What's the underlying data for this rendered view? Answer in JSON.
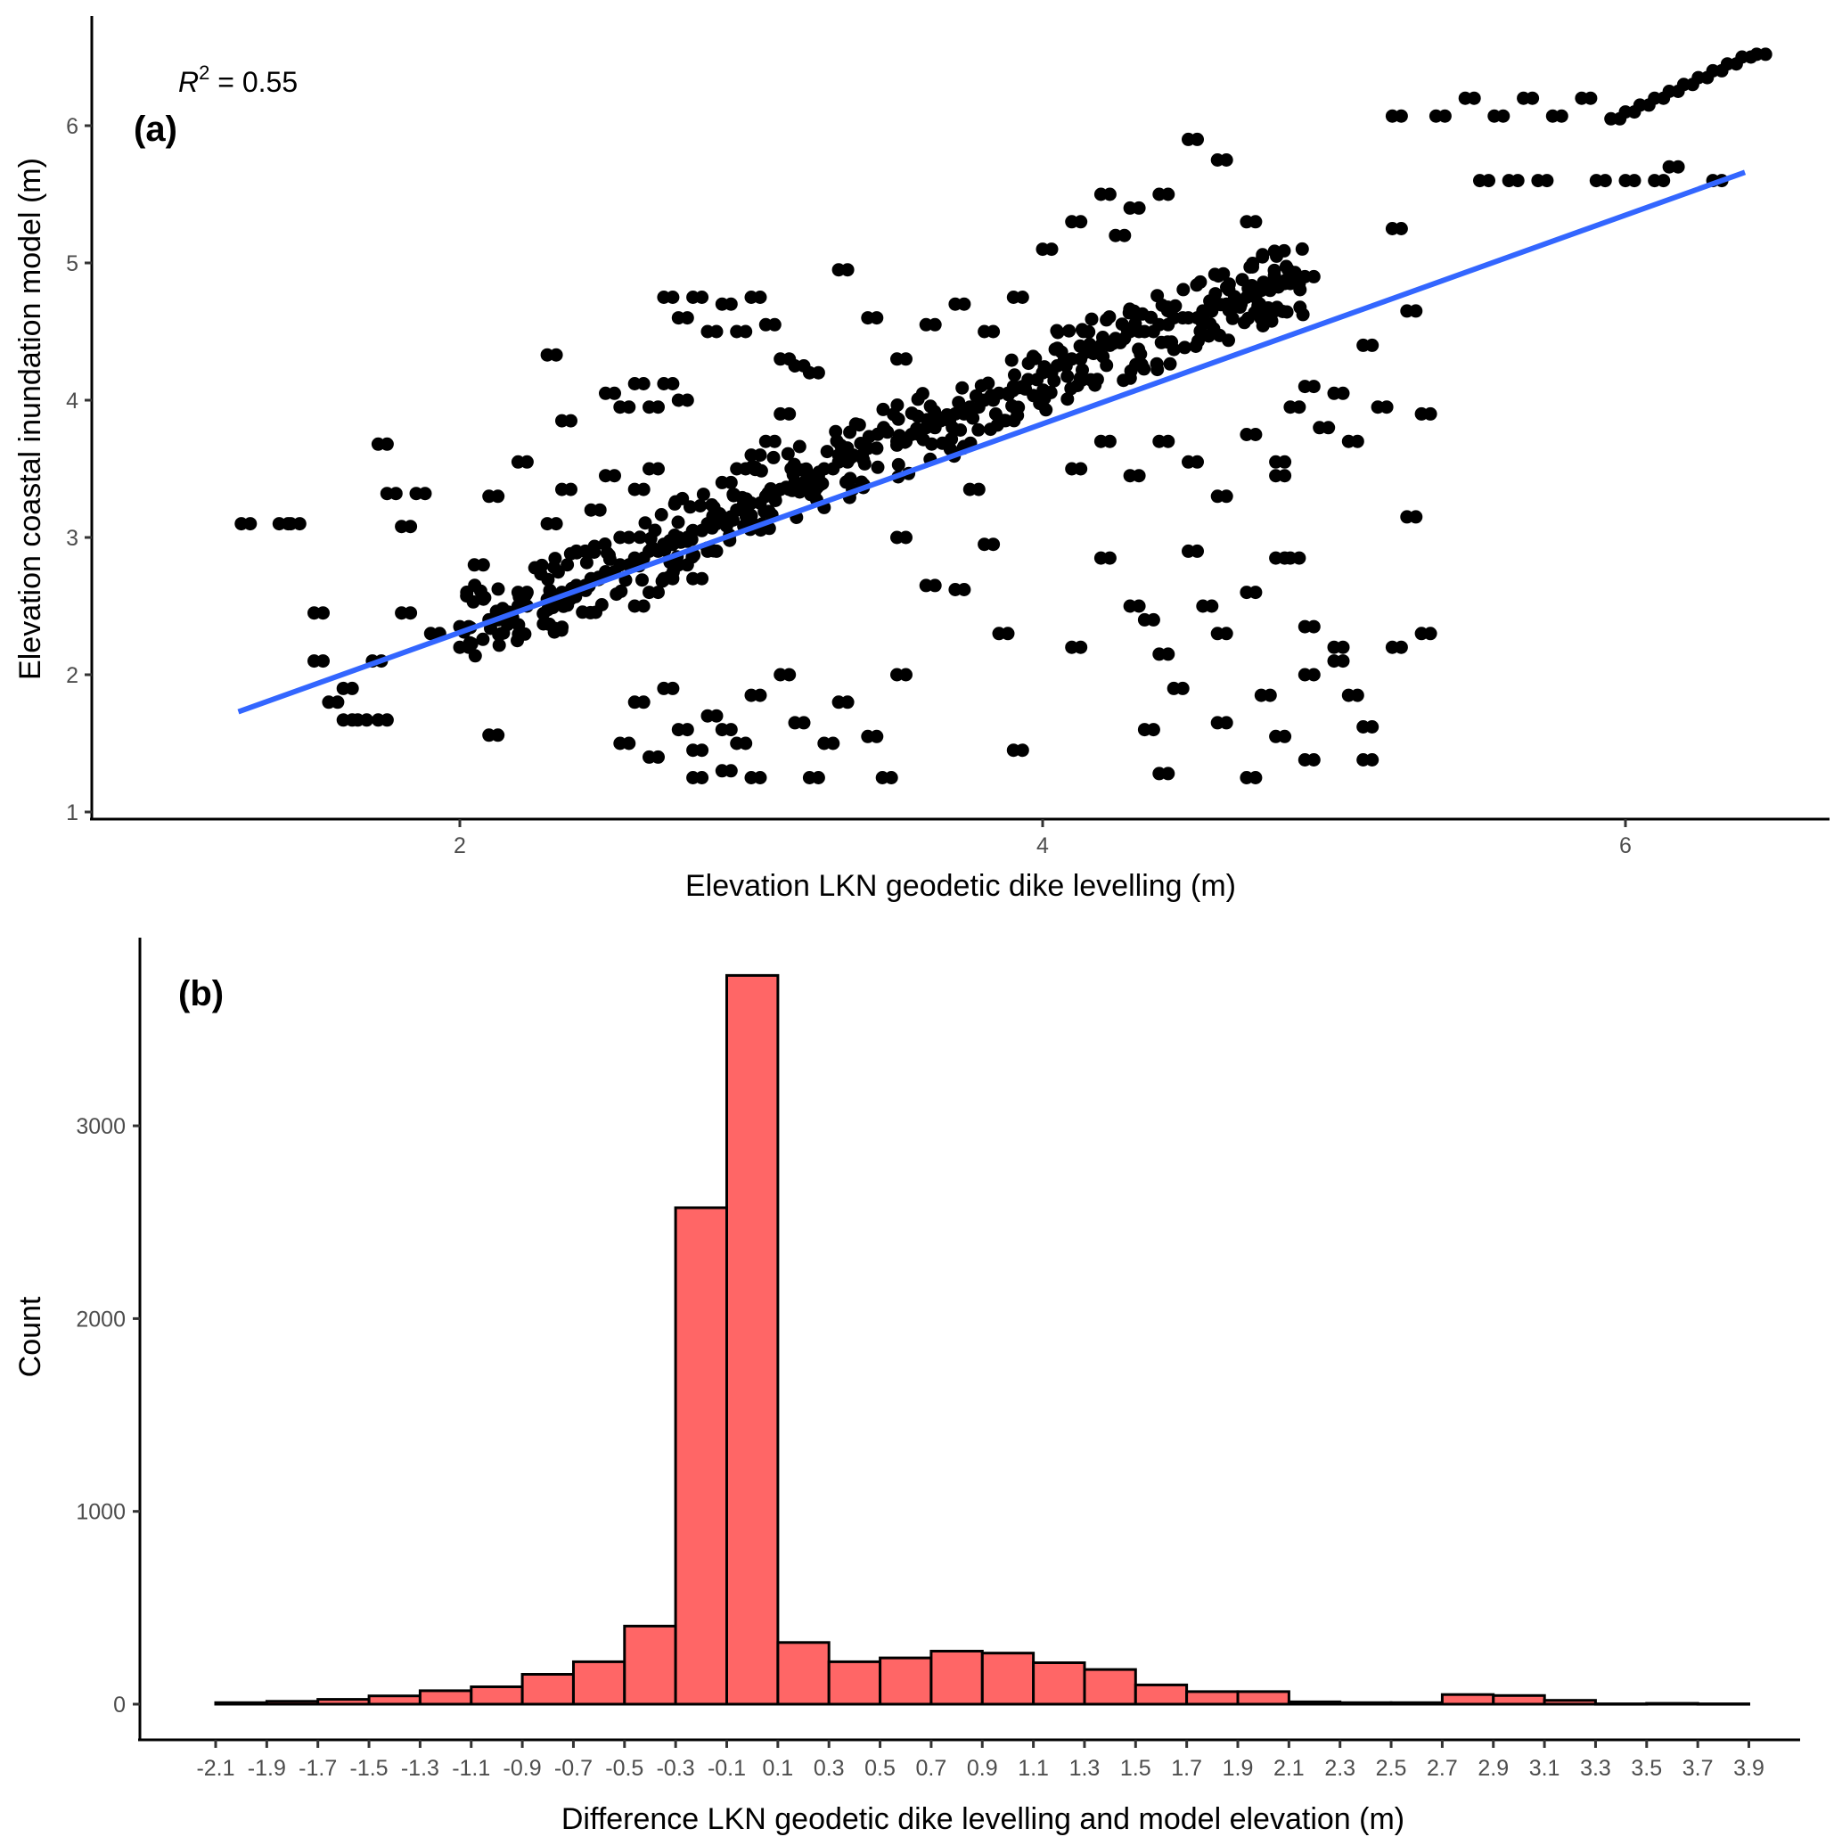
{
  "chart_data": [
    {
      "panel": "(a)",
      "type": "scatter",
      "xlabel": "Elevation LKN geodetic dike levelling (m)",
      "ylabel": "Elevation coastal inundation model (m)",
      "annotation": {
        "prefix": "R",
        "superscript": "2",
        "text": " = 0.55"
      },
      "xlim": [
        0.6,
        6.75
      ],
      "ylim": [
        1.0,
        6.7
      ],
      "x_ticks": [
        2,
        4,
        6
      ],
      "x_tick_labels": [
        "2",
        "4",
        "6"
      ],
      "y_ticks": [
        1,
        2,
        3,
        4,
        5,
        6
      ],
      "y_tick_labels": [
        "1",
        "2",
        "3",
        "4",
        "5",
        "6"
      ],
      "grid": false,
      "point_color": "#000000",
      "fit_line": {
        "color": "#3366FF",
        "x": [
          1.24,
          6.41
        ],
        "y": [
          1.73,
          5.66
        ]
      },
      "point_clusters": [
        {
          "x": [
            1.25,
            1.38,
            1.42
          ],
          "y": [
            3.1,
            3.1,
            3.1
          ]
        },
        {
          "x": [
            1.5,
            1.55,
            1.6,
            1.65,
            1.7,
            1.72,
            1.75,
            1.8,
            1.85
          ],
          "y": [
            2.1,
            1.8,
            1.9,
            1.67,
            2.1,
            3.68,
            3.32,
            3.08,
            3.32
          ]
        },
        {
          "x": [
            1.5,
            1.6,
            1.72,
            1.8,
            1.9,
            2.0,
            2.05,
            2.1,
            2.15,
            2.2
          ],
          "y": [
            2.45,
            1.67,
            1.67,
            2.45,
            2.3,
            2.2,
            2.8,
            1.56,
            2.4,
            2.6
          ]
        },
        {
          "x": [
            2.0,
            2.1,
            2.2,
            2.3,
            2.35,
            2.4,
            2.45,
            2.5,
            2.55,
            2.6,
            2.65,
            2.7
          ],
          "y": [
            2.35,
            2.4,
            2.5,
            2.55,
            2.6,
            2.65,
            2.7,
            2.75,
            2.8,
            2.85,
            2.9,
            2.95
          ]
        },
        {
          "x": [
            2.1,
            2.2,
            2.3,
            2.35,
            2.4,
            2.45,
            2.5,
            2.55,
            2.6,
            2.65
          ],
          "y": [
            3.3,
            3.55,
            3.1,
            3.35,
            2.9,
            3.2,
            3.45,
            3.0,
            3.35,
            3.5
          ]
        },
        {
          "x": [
            2.3,
            2.35,
            2.5,
            2.55,
            2.6,
            2.65,
            2.7,
            2.75
          ],
          "y": [
            4.33,
            3.85,
            4.05,
            3.95,
            4.12,
            3.95,
            4.12,
            4.0
          ]
        },
        {
          "x": [
            2.7,
            2.75,
            2.8,
            2.85,
            2.9,
            2.95,
            3.0,
            3.05,
            3.1,
            3.15,
            3.2,
            3.25,
            3.3,
            3.35,
            3.4
          ],
          "y": [
            2.95,
            3.0,
            3.05,
            3.1,
            3.15,
            3.2,
            3.25,
            3.3,
            3.35,
            3.4,
            3.45,
            3.5,
            3.55,
            3.6,
            3.65
          ]
        },
        {
          "x": [
            2.6,
            2.65,
            2.7,
            2.75,
            2.8,
            2.85,
            2.9,
            2.95,
            3.0,
            3.05,
            3.1
          ],
          "y": [
            2.5,
            2.6,
            2.7,
            2.8,
            2.7,
            2.9,
            3.4,
            3.5,
            3.6,
            3.7,
            3.9
          ]
        },
        {
          "x": [
            2.7,
            2.75,
            2.8,
            2.85,
            2.9,
            2.95,
            3.0,
            3.05,
            3.1,
            3.15,
            3.2
          ],
          "y": [
            4.75,
            4.6,
            4.75,
            4.5,
            4.7,
            4.5,
            4.75,
            4.55,
            4.3,
            4.25,
            4.2
          ]
        },
        {
          "x": [
            2.55,
            2.6,
            2.65,
            2.7,
            2.75,
            2.8,
            2.85,
            2.9,
            2.95,
            3.0
          ],
          "y": [
            1.5,
            1.8,
            1.4,
            1.9,
            1.6,
            1.45,
            1.7,
            1.3,
            1.5,
            1.25
          ]
        },
        {
          "x": [
            2.8,
            2.9,
            3.0,
            3.1,
            3.15,
            3.2,
            3.25,
            3.3,
            3.4,
            3.45,
            3.5
          ],
          "y": [
            1.25,
            1.6,
            1.85,
            2.0,
            1.65,
            1.25,
            1.5,
            1.8,
            1.55,
            1.25,
            2.0
          ]
        },
        {
          "x": [
            3.3,
            3.4,
            3.5,
            3.55,
            3.6,
            3.65,
            3.7,
            3.75,
            3.8,
            3.85,
            3.9,
            3.95,
            4.0
          ],
          "y": [
            3.6,
            3.65,
            3.7,
            3.75,
            3.8,
            3.85,
            3.9,
            3.95,
            4.0,
            4.05,
            4.1,
            4.15,
            4.2
          ]
        },
        {
          "x": [
            3.3,
            3.4,
            3.5,
            3.6,
            3.7,
            3.8,
            3.9
          ],
          "y": [
            4.95,
            4.6,
            4.3,
            4.55,
            4.7,
            4.5,
            4.75
          ]
        },
        {
          "x": [
            3.5,
            3.6,
            3.7,
            3.75,
            3.8,
            3.85,
            3.9
          ],
          "y": [
            3.0,
            2.65,
            2.62,
            3.35,
            2.95,
            2.3,
            1.45
          ]
        },
        {
          "x": [
            4.0,
            4.05,
            4.1,
            4.15,
            4.2,
            4.25,
            4.3,
            4.35,
            4.4,
            4.45,
            4.5,
            4.55,
            4.6,
            4.65,
            4.7,
            4.75,
            4.8,
            4.85,
            4.9
          ],
          "y": [
            4.2,
            4.25,
            4.3,
            4.35,
            4.4,
            4.45,
            4.5,
            4.5,
            4.55,
            4.6,
            4.6,
            4.65,
            4.7,
            4.7,
            4.75,
            4.8,
            4.85,
            4.85,
            4.9
          ]
        },
        {
          "x": [
            4.0,
            4.1,
            4.2,
            4.25,
            4.3,
            4.4,
            4.5,
            4.6,
            4.7
          ],
          "y": [
            5.1,
            5.3,
            5.5,
            5.2,
            5.4,
            5.5,
            5.9,
            5.75,
            5.3
          ]
        },
        {
          "x": [
            4.1,
            4.2,
            4.3,
            4.4,
            4.5,
            4.6,
            4.7,
            4.8
          ],
          "y": [
            3.5,
            3.7,
            3.45,
            3.7,
            3.55,
            3.3,
            3.75,
            3.55
          ]
        },
        {
          "x": [
            4.1,
            4.2,
            4.3,
            4.35,
            4.4,
            4.5,
            4.55,
            4.6,
            4.7,
            4.8
          ],
          "y": [
            2.2,
            2.85,
            2.5,
            2.4,
            2.15,
            2.9,
            2.5,
            2.3,
            2.6,
            2.85
          ]
        },
        {
          "x": [
            4.35,
            4.4,
            4.45,
            4.6,
            4.7,
            4.75,
            4.8,
            4.9
          ],
          "y": [
            1.6,
            1.28,
            1.9,
            1.65,
            1.25,
            1.85,
            1.55,
            1.38
          ]
        },
        {
          "x": [
            4.85,
            4.9,
            4.95,
            5.0,
            5.05,
            5.1,
            5.15,
            5.2,
            5.25,
            5.3
          ],
          "y": [
            3.95,
            4.1,
            3.8,
            4.05,
            3.7,
            4.4,
            3.95,
            5.25,
            4.65,
            3.9
          ]
        },
        {
          "x": [
            4.8,
            4.85,
            4.9,
            5.0,
            5.1,
            5.2,
            5.25,
            5.3
          ],
          "y": [
            3.45,
            2.85,
            2.35,
            2.2,
            1.38,
            2.2,
            3.15,
            2.3
          ]
        },
        {
          "x": [
            4.9,
            5.0,
            5.05,
            5.1
          ],
          "y": [
            2.0,
            2.1,
            1.85,
            1.62
          ]
        },
        {
          "x": [
            5.2,
            5.35,
            5.45,
            5.55,
            5.65,
            5.75,
            5.85
          ],
          "y": [
            6.07,
            6.07,
            6.2,
            6.07,
            6.2,
            6.07,
            6.2
          ]
        },
        {
          "x": [
            5.5,
            5.6,
            5.7,
            5.9,
            6.0,
            6.1,
            6.15,
            6.3
          ],
          "y": [
            5.6,
            5.6,
            5.6,
            5.6,
            5.6,
            5.6,
            5.7,
            5.6
          ]
        },
        {
          "x": [
            5.95,
            6.0,
            6.05,
            6.1,
            6.15,
            6.2,
            6.25,
            6.3,
            6.35,
            6.4,
            6.45
          ],
          "y": [
            6.05,
            6.1,
            6.15,
            6.2,
            6.25,
            6.3,
            6.35,
            6.4,
            6.45,
            6.5,
            6.52
          ]
        }
      ]
    },
    {
      "panel": "(b)",
      "type": "bar",
      "subtype": "histogram",
      "xlabel": "Difference LKN geodetic dike levelling and model elevation (m)",
      "ylabel": "Count",
      "bin_width": 0.2,
      "bin_edges": [
        -2.1,
        -1.9,
        -1.7,
        -1.5,
        -1.3,
        -1.1,
        -0.9,
        -0.7,
        -0.5,
        -0.3,
        -0.1,
        0.1,
        0.3,
        0.5,
        0.7,
        0.9,
        1.1,
        1.3,
        1.5,
        1.7,
        1.9,
        2.1,
        2.3,
        2.5,
        2.7,
        2.9,
        3.1,
        3.3,
        3.5,
        3.7,
        3.9
      ],
      "categories": [
        "-2.1",
        "-1.9",
        "-1.7",
        "-1.5",
        "-1.3",
        "-1.1",
        "-0.9",
        "-0.7",
        "-0.5",
        "-0.3",
        "-0.1",
        "0.1",
        "0.3",
        "0.5",
        "0.7",
        "0.9",
        "1.1",
        "1.3",
        "1.5",
        "1.7",
        "1.9",
        "2.1",
        "2.3",
        "2.5",
        "2.7",
        "2.9",
        "3.1",
        "3.3",
        "3.5",
        "3.7",
        "3.9"
      ],
      "values": [
        8,
        15,
        25,
        43,
        70,
        90,
        155,
        220,
        405,
        2575,
        3780,
        320,
        220,
        240,
        275,
        265,
        215,
        180,
        100,
        65,
        65,
        12,
        8,
        8,
        50,
        45,
        20,
        2,
        4,
        2
      ],
      "ylim": [
        -120,
        3950
      ],
      "xlim": [
        -2.5,
        4.2
      ],
      "y_ticks": [
        0,
        1000,
        2000,
        3000
      ],
      "y_tick_labels": [
        "0",
        "1000",
        "2000",
        "3000"
      ],
      "grid": false,
      "bar_fill": "#FF6666",
      "bar_stroke": "#000000"
    }
  ]
}
